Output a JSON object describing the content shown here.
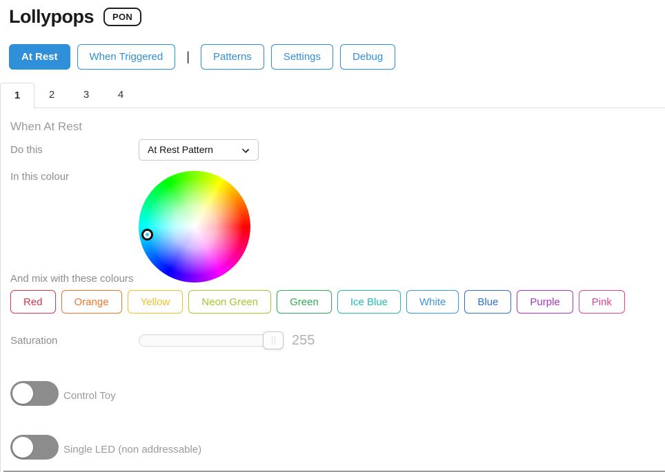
{
  "header": {
    "title": "Lollypops",
    "badge": "PON"
  },
  "toolbar": {
    "buttons": [
      {
        "label": "At Rest",
        "active": true
      },
      {
        "label": "When Triggered",
        "active": false
      },
      {
        "label": "Patterns",
        "active": false
      },
      {
        "label": "Settings",
        "active": false
      },
      {
        "label": "Debug",
        "active": false
      }
    ],
    "separator": "|"
  },
  "tabs": {
    "items": [
      {
        "label": "1",
        "active": true
      },
      {
        "label": "2",
        "active": false
      },
      {
        "label": "3",
        "active": false
      },
      {
        "label": "4",
        "active": false
      }
    ]
  },
  "panel": {
    "heading": "When At Rest",
    "do_this": {
      "label": "Do this",
      "selected": "At Rest Pattern"
    },
    "in_colour": {
      "label": "In this colour",
      "selected_hex": "#3ec9f2"
    },
    "mix": {
      "label": "And mix with these colours",
      "buttons": [
        {
          "label": "Red",
          "color": "#dc3545"
        },
        {
          "label": "Orange",
          "color": "#f4732c"
        },
        {
          "label": "Yellow",
          "color": "#eec12b"
        },
        {
          "label": "Neon Green",
          "color": "#a8c62e"
        },
        {
          "label": "Green",
          "color": "#30a857"
        },
        {
          "label": "Ice Blue",
          "color": "#1fbcb4"
        },
        {
          "label": "White",
          "color": "#3d96dd"
        },
        {
          "label": "Blue",
          "color": "#2d6fd2"
        },
        {
          "label": "Purple",
          "color": "#a636c8"
        },
        {
          "label": "Pink",
          "color": "#e83e8c"
        }
      ]
    },
    "saturation": {
      "label": "Saturation",
      "value": "255"
    },
    "toggles": [
      {
        "label": "Control Toy",
        "on": false
      },
      {
        "label": "Single LED (non addressable)",
        "on": false
      }
    ]
  },
  "colors": {
    "accent": "#2f8fd8",
    "label_gray": "#8d8d8d",
    "toggle_gray": "#8c8c8c",
    "border_gray": "#dcdcdc"
  }
}
